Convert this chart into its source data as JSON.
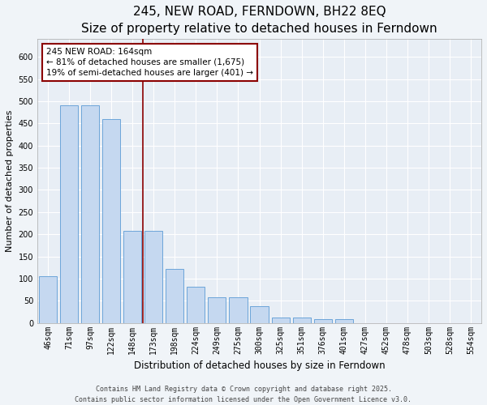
{
  "title": "245, NEW ROAD, FERNDOWN, BH22 8EQ",
  "subtitle": "Size of property relative to detached houses in Ferndown",
  "xlabel": "Distribution of detached houses by size in Ferndown",
  "ylabel": "Number of detached properties",
  "categories": [
    "46sqm",
    "71sqm",
    "97sqm",
    "122sqm",
    "148sqm",
    "173sqm",
    "198sqm",
    "224sqm",
    "249sqm",
    "275sqm",
    "300sqm",
    "325sqm",
    "351sqm",
    "376sqm",
    "401sqm",
    "427sqm",
    "452sqm",
    "478sqm",
    "503sqm",
    "528sqm",
    "554sqm"
  ],
  "values": [
    105,
    490,
    490,
    460,
    207,
    207,
    122,
    82,
    57,
    57,
    38,
    13,
    13,
    9,
    9,
    0,
    0,
    0,
    0,
    0,
    0
  ],
  "bar_color": "#c5d8f0",
  "bar_edge_color": "#5b9bd5",
  "background_color": "#e8eef5",
  "grid_color": "#ffffff",
  "vline_x": 4.5,
  "vline_color": "#8b0000",
  "annotation_text": "245 NEW ROAD: 164sqm\n← 81% of detached houses are smaller (1,675)\n19% of semi-detached houses are larger (401) →",
  "annotation_box_color": "#8b0000",
  "footer": "Contains HM Land Registry data © Crown copyright and database right 2025.\nContains public sector information licensed under the Open Government Licence v3.0.",
  "title_fontsize": 11,
  "ylabel_fontsize": 8,
  "xlabel_fontsize": 8.5,
  "tick_fontsize": 7,
  "annotation_fontsize": 7.5,
  "footer_fontsize": 6,
  "ylim": [
    0,
    640
  ],
  "yticks": [
    0,
    50,
    100,
    150,
    200,
    250,
    300,
    350,
    400,
    450,
    500,
    550,
    600
  ],
  "fig_bg": "#f0f4f8"
}
